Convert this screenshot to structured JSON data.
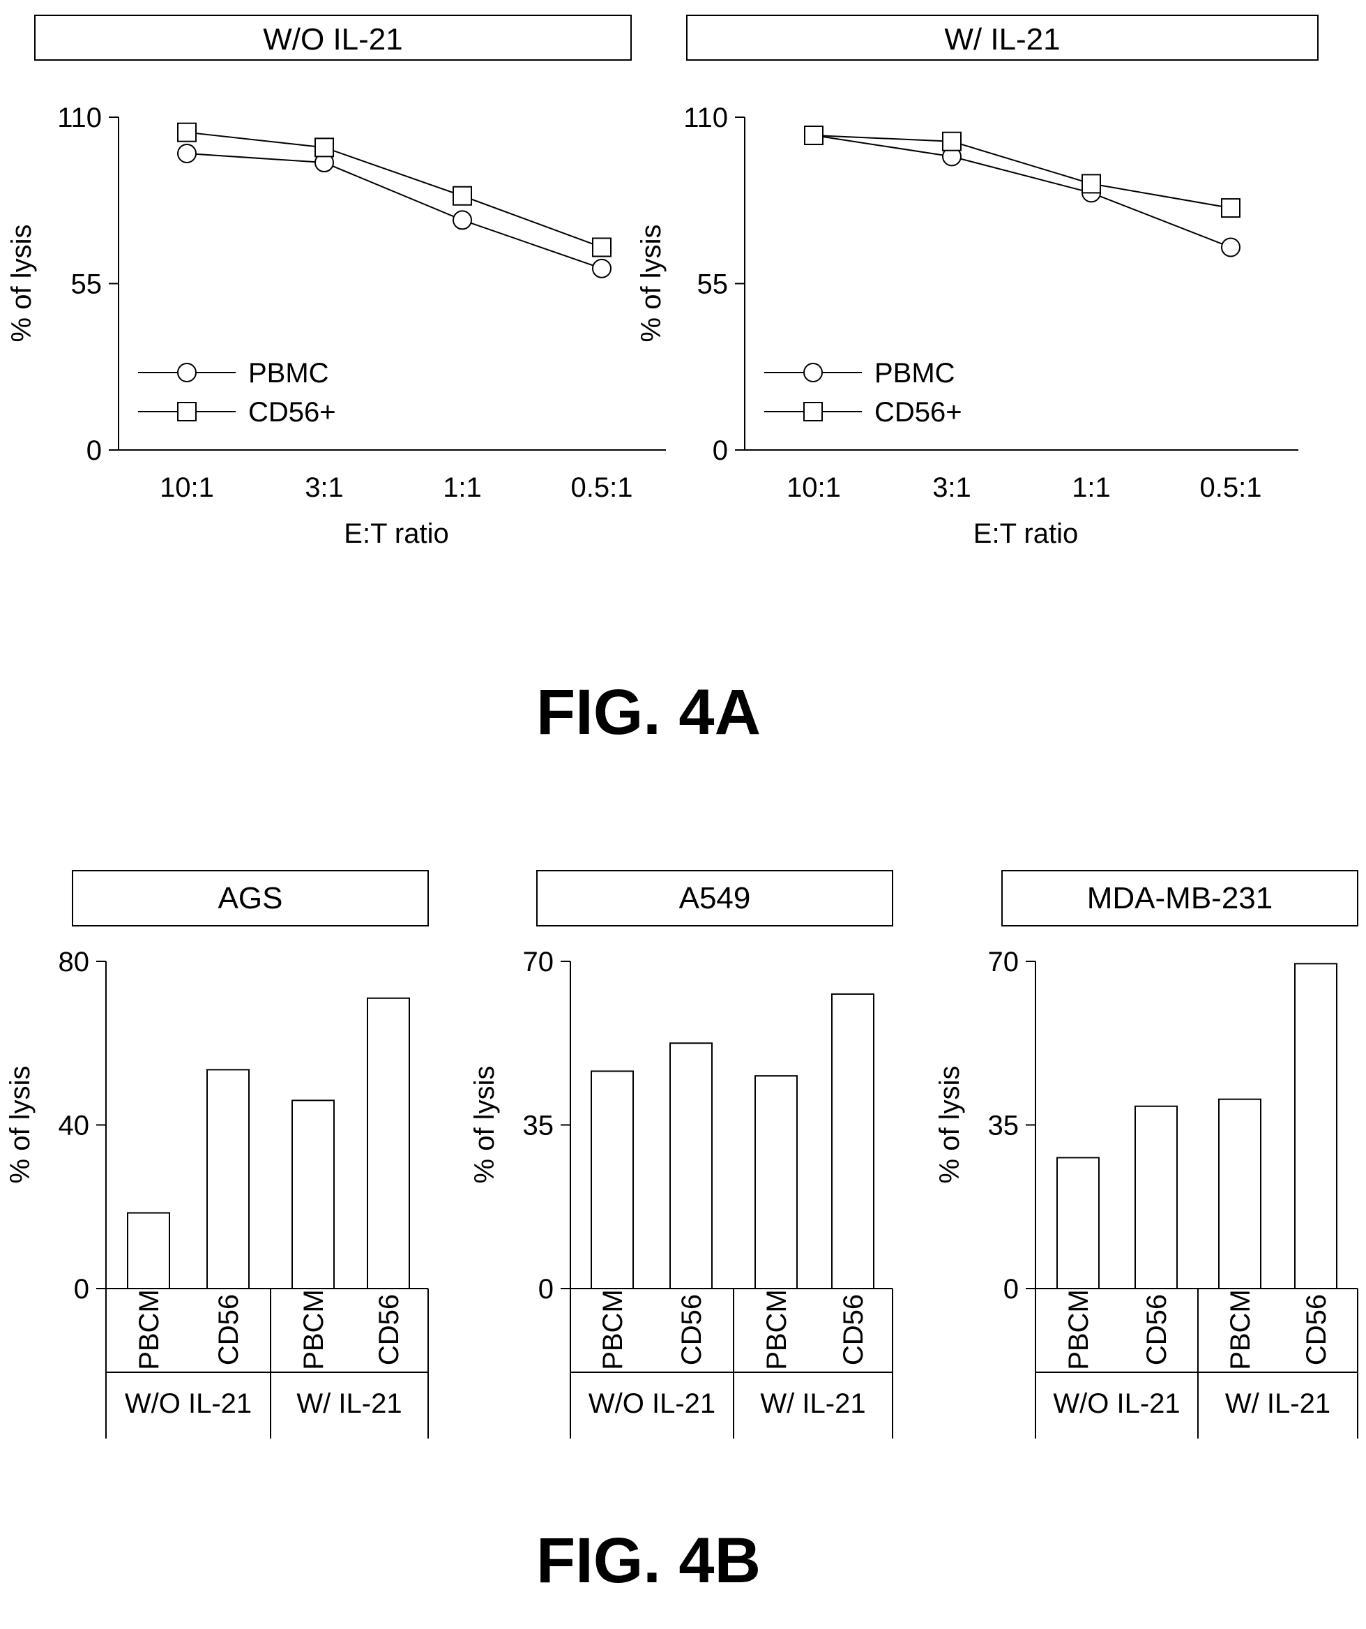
{
  "figure_labels": [
    "FIG. 4A",
    "FIG. 4B"
  ],
  "chart_data": [
    {
      "type": "line",
      "title": "W/O IL-21",
      "xlabel": "E:T ratio",
      "ylabel": "% of lysis",
      "categories": [
        "10:1",
        "3:1",
        "1:1",
        "0.5:1"
      ],
      "yticks": [
        "0",
        "55",
        "110"
      ],
      "ylim": [
        0,
        110
      ],
      "legend": "lower-left",
      "series": [
        {
          "name": "PBMC",
          "marker": "circle",
          "values": [
            98,
            95,
            76,
            60
          ]
        },
        {
          "name": "CD56+",
          "marker": "square",
          "values": [
            105,
            100,
            84,
            67
          ]
        }
      ]
    },
    {
      "type": "line",
      "title": "W/ IL-21",
      "xlabel": "E:T ratio",
      "ylabel": "% of lysis",
      "categories": [
        "10:1",
        "3:1",
        "1:1",
        "0.5:1"
      ],
      "yticks": [
        "0",
        "55",
        "110"
      ],
      "ylim": [
        0,
        110
      ],
      "legend": "lower-left",
      "series": [
        {
          "name": "PBMC",
          "marker": "circle",
          "values": [
            104,
            97,
            85,
            67
          ]
        },
        {
          "name": "CD56+",
          "marker": "square",
          "values": [
            104,
            102,
            88,
            80
          ]
        }
      ]
    },
    {
      "type": "bar",
      "title": "AGS",
      "ylabel": "% of lysis",
      "categories": [
        "PBCM",
        "CD56",
        "PBCM",
        "CD56"
      ],
      "groups": [
        "W/O IL-21",
        "W/ IL-21"
      ],
      "yticks": [
        "0",
        "40",
        "80"
      ],
      "ylim": [
        0,
        80
      ],
      "values": [
        18.5,
        53.5,
        46,
        71
      ]
    },
    {
      "type": "bar",
      "title": "A549",
      "ylabel": "% of lysis",
      "categories": [
        "PBCM",
        "CD56",
        "PBCM",
        "CD56"
      ],
      "groups": [
        "W/O IL-21",
        "W/ IL-21"
      ],
      "yticks": [
        "0",
        "35",
        "70"
      ],
      "ylim": [
        0,
        70
      ],
      "values": [
        46.5,
        52.5,
        45.5,
        63
      ]
    },
    {
      "type": "bar",
      "title": "MDA-MB-231",
      "ylabel": "% of lysis",
      "categories": [
        "PBCM",
        "CD56",
        "PBCM",
        "CD56"
      ],
      "groups": [
        "W/O IL-21",
        "W/ IL-21"
      ],
      "yticks": [
        "0",
        "35",
        "70"
      ],
      "ylim": [
        0,
        70
      ],
      "values": [
        28,
        39,
        40.5,
        69.5
      ]
    }
  ]
}
